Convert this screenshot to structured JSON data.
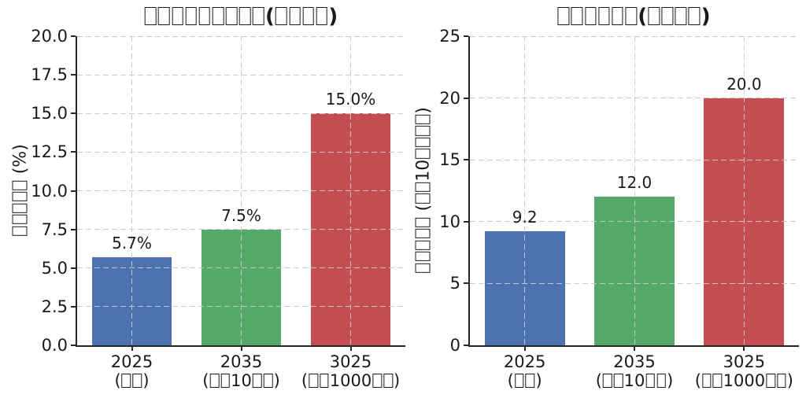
{
  "figure": {
    "background": "#ffffff",
    "text_color": "#1a1a1a",
    "grid_color": "#c9c9c9",
    "spine_color": "#262626",
    "bar_colors": [
      "#4C72B0",
      "#55A868",
      "#C44E52"
    ],
    "missing_glyph_note": "CJK characters appear as hollow tofu boxes (□) in the rendered figure"
  },
  "chart_data": [
    {
      "type": "bar",
      "title": "□□□□□□□□□(□□□□)",
      "ylabel": "□□□□□ (%)",
      "xlabel": "",
      "categories": [
        "2025\n(□□)",
        "2035\n(□□10□□)",
        "3025\n(□□1000□□)"
      ],
      "values": [
        5.7,
        7.5,
        15.0
      ],
      "value_labels": [
        "5.7%",
        "7.5%",
        "15.0%"
      ],
      "ylim": [
        0,
        20
      ],
      "yticks": [
        "0.0",
        "2.5",
        "5.0",
        "7.5",
        "10.0",
        "12.5",
        "15.0",
        "17.5",
        "20.0"
      ],
      "grid": "dashed, horizontal and vertical, drawn above bars",
      "legend_position": "none"
    },
    {
      "type": "bar",
      "title": "□□□□□□(□□□□)",
      "ylabel": "□□□□□ (□□10□□□□)",
      "xlabel": "",
      "categories": [
        "2025\n(□□)",
        "2035\n(□□10□□)",
        "3025\n(□□1000□□)"
      ],
      "values": [
        9.2,
        12.0,
        20.0
      ],
      "value_labels": [
        "9.2",
        "12.0",
        "20.0"
      ],
      "ylim": [
        0,
        25
      ],
      "yticks": [
        "0",
        "5",
        "10",
        "15",
        "20",
        "25"
      ],
      "grid": "dashed, horizontal and vertical, drawn above bars",
      "legend_position": "none"
    }
  ]
}
